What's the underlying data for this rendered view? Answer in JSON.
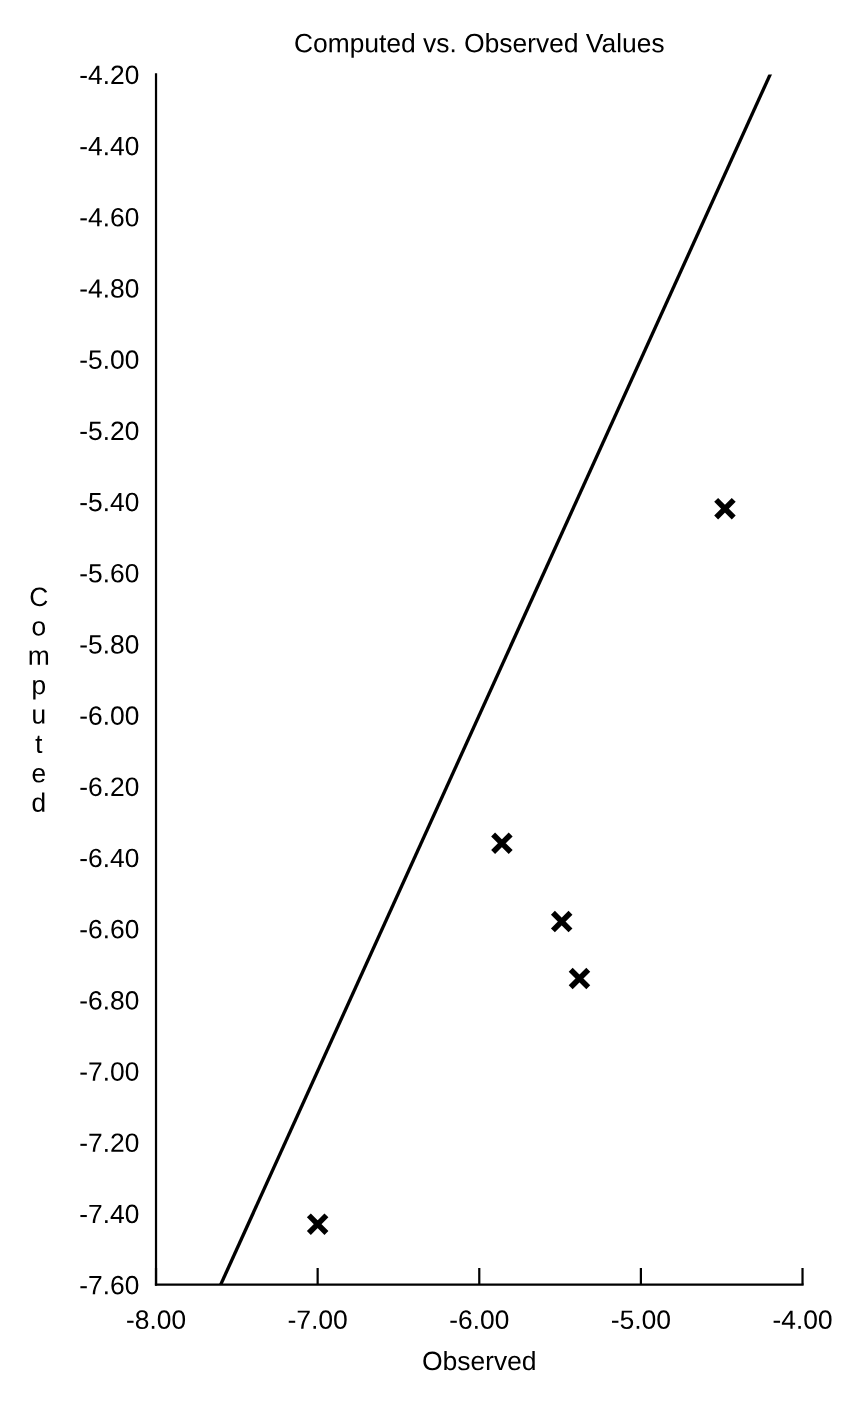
{
  "chart_data": {
    "type": "scatter",
    "title": "Computed vs. Observed Values",
    "xlabel": "Observed",
    "ylabel": "Computed",
    "series": [
      {
        "color": "#000000",
        "marker": "cross",
        "x": [
          -4.48,
          -5.86,
          -5.49,
          -5.38,
          -7.0
        ],
        "values": [
          -5.42,
          -6.36,
          -6.58,
          -6.74,
          -7.43
        ]
      },
      {
        "type": "line",
        "color": "#000000",
        "marker": "none",
        "line_style": "solid",
        "x": [
          -7.6,
          -4.2
        ],
        "values": [
          -7.6,
          -4.2
        ]
      }
    ],
    "xlim": [
      -8,
      -4
    ],
    "ylim": [
      -7.6,
      -4.2
    ],
    "xticks": [
      {
        "value": -8,
        "label": "-8.00"
      },
      {
        "value": -7,
        "label": "-7.00"
      },
      {
        "value": -6,
        "label": "-6.00"
      },
      {
        "value": -5,
        "label": "-5.00"
      },
      {
        "value": -4,
        "label": "-4.00"
      }
    ],
    "yticks": [
      {
        "value": -7.6,
        "label": "-7.60"
      },
      {
        "value": -7.4,
        "label": "-7.40"
      },
      {
        "value": -7.2,
        "label": "-7.20"
      },
      {
        "value": -7.0,
        "label": "-7.00"
      },
      {
        "value": -6.8,
        "label": "-6.80"
      },
      {
        "value": -6.6,
        "label": "-6.60"
      },
      {
        "value": -6.4,
        "label": "-6.40"
      },
      {
        "value": -6.2,
        "label": "-6.20"
      },
      {
        "value": -6.0,
        "label": "-6.00"
      },
      {
        "value": -5.8,
        "label": "-5.80"
      },
      {
        "value": -5.6,
        "label": "-5.60"
      },
      {
        "value": -5.4,
        "label": "-5.40"
      },
      {
        "value": -5.2,
        "label": "-5.20"
      },
      {
        "value": -5.0,
        "label": "-5.00"
      },
      {
        "value": -4.8,
        "label": "-4.80"
      },
      {
        "value": -4.6,
        "label": "-4.60"
      },
      {
        "value": -4.4,
        "label": "-4.40"
      },
      {
        "value": -4.2,
        "label": "-4.20"
      }
    ],
    "grid": false,
    "legend": false
  }
}
